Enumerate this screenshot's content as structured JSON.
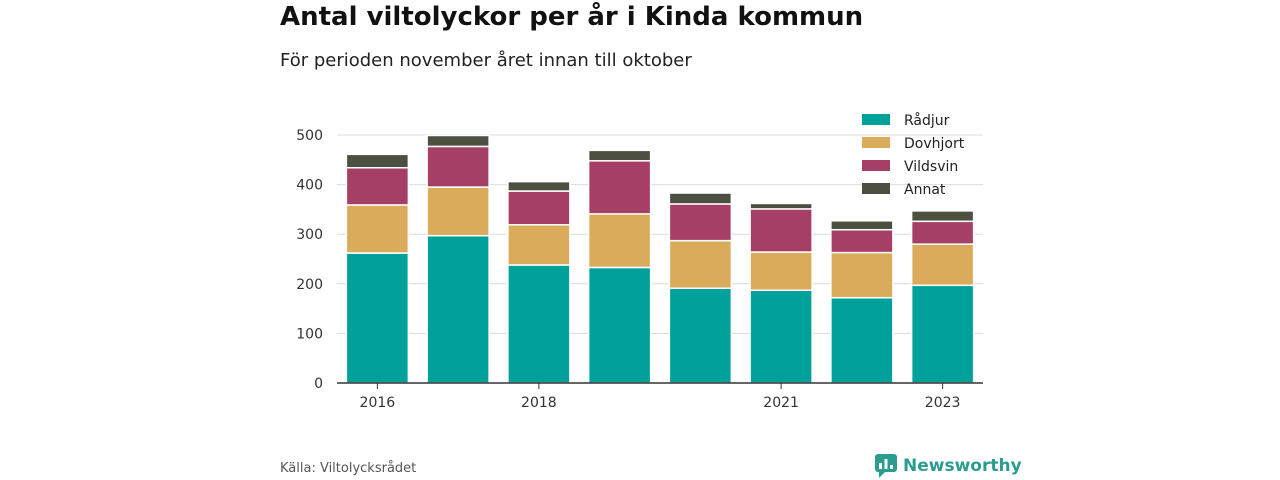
{
  "title": "Antal viltolyckor per år i Kinda kommun",
  "subtitle": "För perioden november året innan till oktober",
  "source": "Källa: Viltolycksrådet",
  "brand": {
    "name": "Newsworthy",
    "icon": "newsworthy-logo-icon",
    "color": "#2a9d8f"
  },
  "chart_data": {
    "type": "bar",
    "stacked": true,
    "categories": [
      "2016",
      "2017",
      "2018",
      "2019",
      "2020",
      "2021",
      "2022",
      "2023"
    ],
    "x_tick_labels": [
      "2016",
      "",
      "2018",
      "",
      "",
      "2021",
      "",
      "2023"
    ],
    "series": [
      {
        "name": "Rådjur",
        "color": "#00a19a",
        "values": [
          262,
          297,
          238,
          233,
          191,
          187,
          172,
          197
        ]
      },
      {
        "name": "Dovhjort",
        "color": "#d9ab5b",
        "values": [
          97,
          98,
          81,
          108,
          96,
          77,
          91,
          83
        ]
      },
      {
        "name": "Vildsvin",
        "color": "#a63f66",
        "values": [
          75,
          82,
          68,
          107,
          74,
          87,
          46,
          46
        ]
      },
      {
        "name": "Annat",
        "color": "#4b5041",
        "values": [
          27,
          22,
          19,
          21,
          22,
          11,
          18,
          21
        ]
      }
    ],
    "ylim": [
      0,
      500
    ],
    "yticks": [
      0,
      100,
      200,
      300,
      400,
      500
    ],
    "grid": true,
    "legend_position": "top-right",
    "xlabel": "",
    "ylabel": ""
  }
}
